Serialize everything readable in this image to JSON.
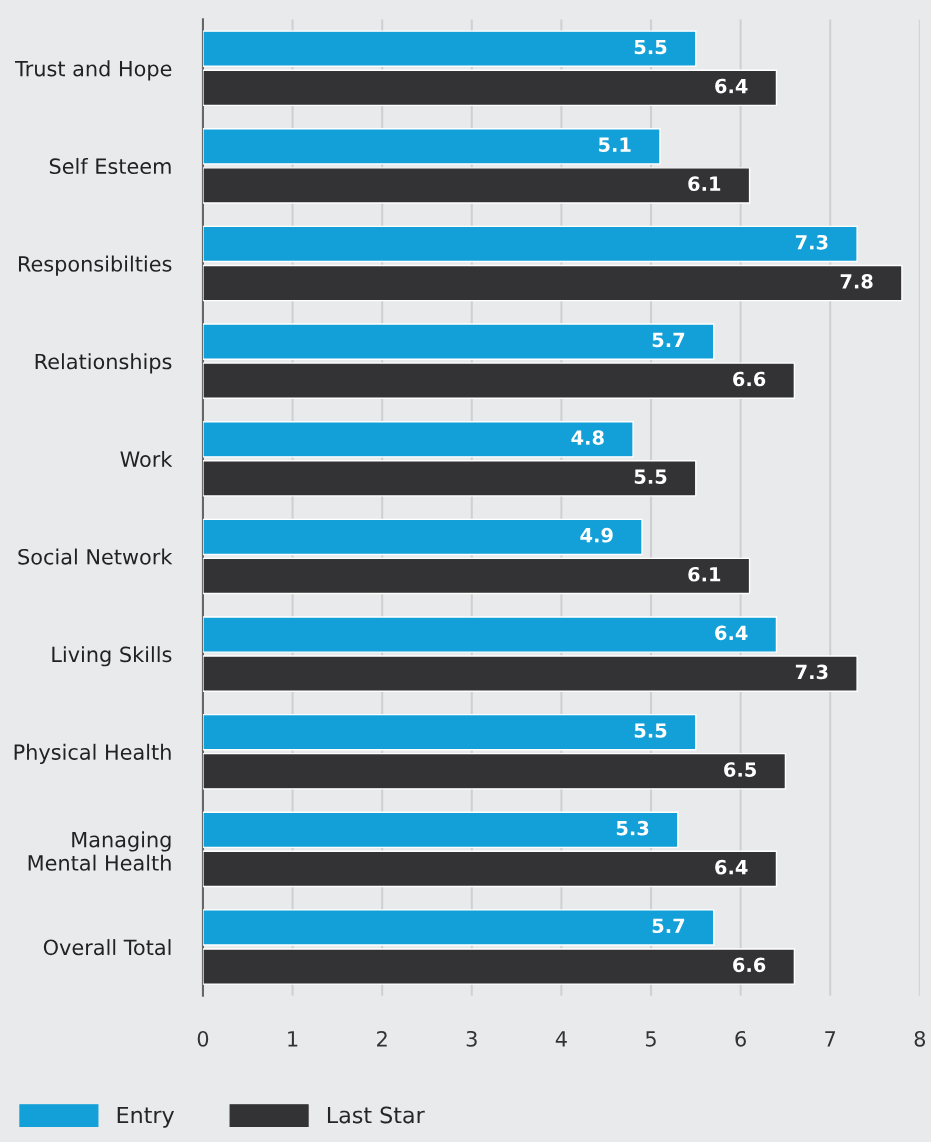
{
  "chart_data": {
    "type": "bar",
    "orientation": "horizontal",
    "categories": [
      "Trust and Hope",
      "Self Esteem",
      "Responsibilties",
      "Relationships",
      "Work",
      "Social Network",
      "Living Skills",
      "Physical Health",
      "Managing\nMental Health",
      "Overall Total"
    ],
    "series": [
      {
        "name": "Entry",
        "color": "#13a0d8",
        "values": [
          5.5,
          5.1,
          7.3,
          5.7,
          4.8,
          4.9,
          6.4,
          5.5,
          5.3,
          5.7
        ]
      },
      {
        "name": "Last Star",
        "color": "#333335",
        "values": [
          6.4,
          6.1,
          7.8,
          6.6,
          5.5,
          6.1,
          7.3,
          6.5,
          6.4,
          6.6
        ]
      }
    ],
    "xlim": [
      0,
      8
    ],
    "xticks": [
      0,
      1,
      2,
      3,
      4,
      5,
      6,
      7,
      8
    ],
    "grid": "x",
    "legend": "bottom left",
    "data_labels": true
  }
}
